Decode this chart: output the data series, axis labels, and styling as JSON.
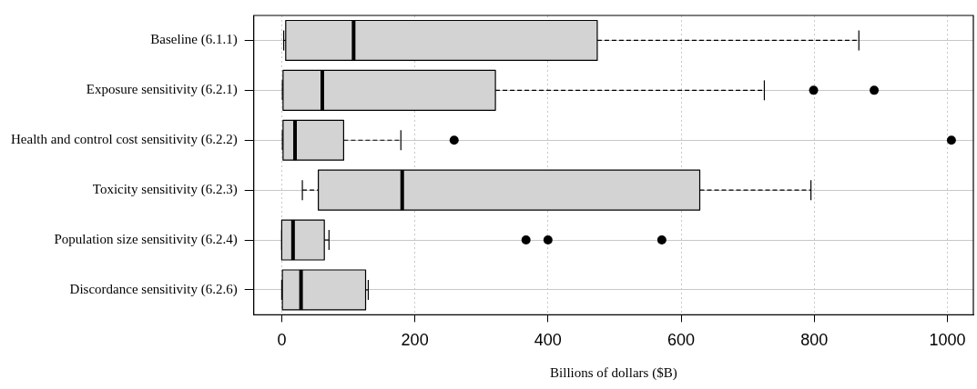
{
  "chart_data": {
    "type": "box",
    "orientation": "horizontal",
    "xlabel": "Billions of dollars ($B)",
    "categories": [
      "Baseline (6.1.1)",
      "Exposure sensitivity (6.2.1)",
      "Health and control cost sensitivity (6.2.2)",
      "Toxicity sensitivity (6.2.3)",
      "Population size sensitivity (6.2.4)",
      "Discordance sensitivity (6.2.6)"
    ],
    "boxes": [
      {
        "low": 3,
        "q1": 6,
        "median": 108,
        "q3": 474,
        "high": 867
      },
      {
        "low": 1,
        "q1": 2,
        "median": 61,
        "q3": 321,
        "high": 725,
        "outliers": [
          799,
          890
        ]
      },
      {
        "low": 1,
        "q1": 2,
        "median": 20,
        "q3": 93,
        "high": 179,
        "outliers": [
          259,
          1006
        ]
      },
      {
        "low": 31,
        "q1": 55,
        "median": 181,
        "q3": 628,
        "high": 795
      },
      {
        "low": 0,
        "q1": 0,
        "median": 17,
        "q3": 64,
        "high": 71,
        "outliers": [
          367,
          400,
          571
        ]
      },
      {
        "low": 0,
        "q1": 1,
        "median": 29,
        "q3": 126,
        "high": 130
      }
    ],
    "color": "#d3d3d3",
    "xlim": [
      -42,
      1039
    ],
    "xticks": [
      0,
      200,
      400,
      600,
      800,
      1000
    ],
    "grid": true,
    "legend": false
  }
}
